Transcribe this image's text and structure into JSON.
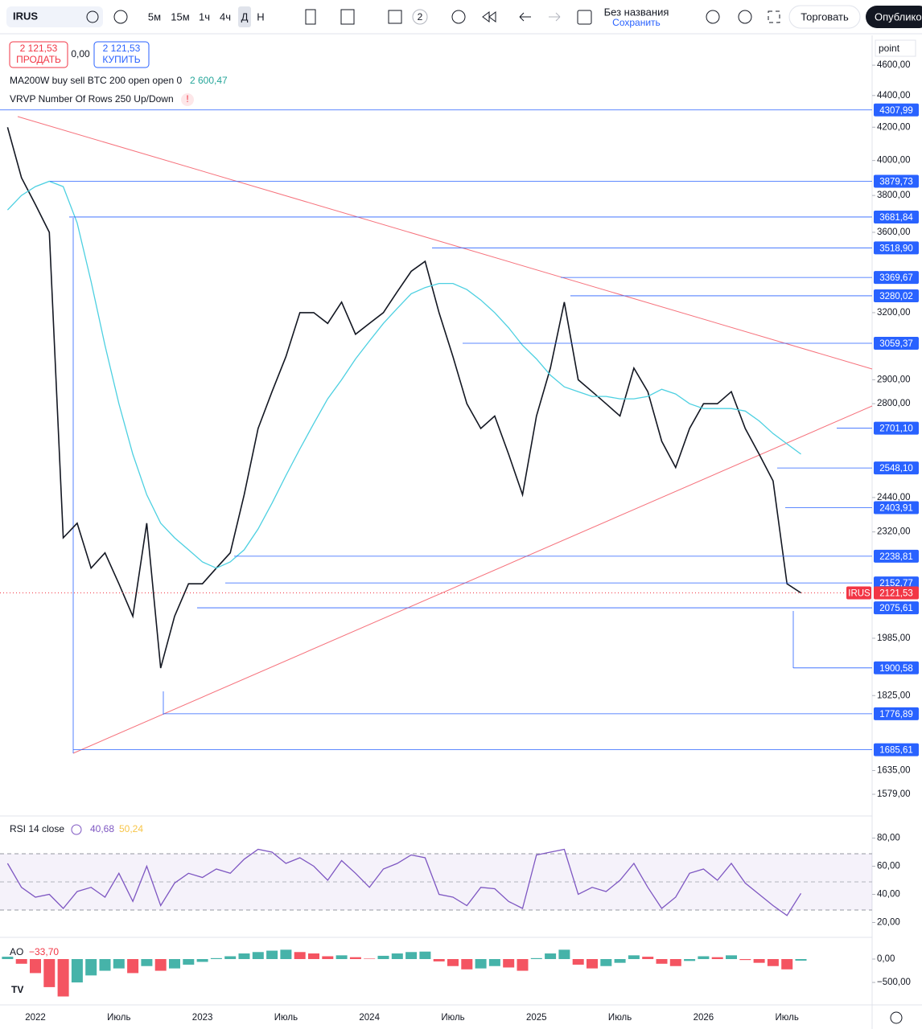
{
  "toolbar": {
    "symbol": "IRUS",
    "intervals": [
      "5м",
      "15м",
      "1ч",
      "4ч",
      "Д",
      "Н"
    ],
    "layout_count": "2",
    "layout_name": "Без названия",
    "save_hint": "Сохранить",
    "trade_button": "Торговать",
    "publish_button": "Опублико"
  },
  "order_panel": {
    "sell_price": "2 121,53",
    "sell_label": "ПРОДАТЬ",
    "spread": "0,00",
    "buy_price": "2 121,53",
    "buy_label": "КУПИТЬ"
  },
  "indicators": {
    "ma_value": "2 600,47",
    "vrvp_legend": "VRVP Number Of Rows 250 Up/Down",
    "rsi_value": "40,68",
    "rsi_ma_value": "50,24",
    "ao_value": "−33,70"
  },
  "price_scale_mode": "point",
  "chart_data": [
    {
      "type": "line",
      "log_scale": true,
      "ylim": [
        1535,
        4800
      ],
      "categories": [
        null,
        null,
        "2022",
        null,
        null,
        null,
        null,
        null,
        "Июль",
        null,
        null,
        null,
        null,
        null,
        "2023",
        null,
        null,
        null,
        null,
        null,
        "Июль",
        null,
        null,
        null,
        null,
        null,
        "2024",
        null,
        null,
        null,
        null,
        null,
        "Июль",
        null,
        null,
        null,
        null,
        null,
        "2025",
        null,
        null,
        null,
        null,
        null,
        "Июль",
        null,
        null,
        null,
        null,
        null,
        "2026",
        null,
        null,
        null,
        null,
        null,
        "Июль",
        null
      ],
      "series": [
        {
          "name": "IRUS",
          "color": "#131722",
          "values": [
            4200,
            3900,
            3750,
            3600,
            2300,
            2350,
            2200,
            2250,
            2150,
            2050,
            2350,
            1900,
            2050,
            2150,
            2150,
            2200,
            2250,
            2450,
            2700,
            2850,
            3000,
            3200,
            3200,
            3150,
            3250,
            3100,
            3150,
            3200,
            3300,
            3400,
            3450,
            3200,
            3000,
            2800,
            2700,
            2750,
            2600,
            2450,
            2750,
            2950,
            3250,
            2900,
            2850,
            2800,
            2750,
            2950,
            2850,
            2650,
            2550,
            2700,
            2800,
            2800,
            2850,
            2700,
            2600,
            2500,
            2150,
            2121.53
          ]
        },
        {
          "name": "MA200W buy sell BTC 200 open open 0",
          "color": "#4dd0e1",
          "values": [
            3720,
            3800,
            3850,
            3880,
            3850,
            3650,
            3350,
            3050,
            2800,
            2600,
            2450,
            2350,
            2300,
            2260,
            2220,
            2200,
            2220,
            2260,
            2330,
            2420,
            2520,
            2620,
            2720,
            2820,
            2900,
            2990,
            3070,
            3150,
            3220,
            3290,
            3320,
            3340,
            3340,
            3310,
            3260,
            3200,
            3130,
            3050,
            2990,
            2920,
            2870,
            2850,
            2830,
            2830,
            2820,
            2820,
            2830,
            2860,
            2840,
            2800,
            2780,
            2780,
            2780,
            2770,
            2730,
            2680,
            2640,
            2600.47
          ]
        }
      ],
      "yticks": [
        {
          "value": 4600,
          "label": "4600,00"
        },
        {
          "value": 4400,
          "label": "4400,00"
        },
        {
          "value": 4200,
          "label": "4200,00"
        },
        {
          "value": 4000,
          "label": "4000,00"
        },
        {
          "value": 3800,
          "label": "3800,00"
        },
        {
          "value": 3600,
          "label": "3600,00"
        },
        {
          "value": 3200,
          "label": "3200,00"
        },
        {
          "value": 2900,
          "label": "2900,00"
        },
        {
          "value": 2800,
          "label": "2800,00"
        },
        {
          "value": 2440,
          "label": "2440,00"
        },
        {
          "value": 2320,
          "label": "2320,00"
        },
        {
          "value": 1985,
          "label": "1985,00"
        },
        {
          "value": 1825,
          "label": "1825,00"
        },
        {
          "value": 1635,
          "label": "1635,00"
        },
        {
          "value": 1579,
          "label": "1579,00"
        }
      ],
      "price_levels": [
        {
          "value": 4307.99,
          "label": "4307,99"
        },
        {
          "value": 3879.73,
          "label": "3879,73"
        },
        {
          "value": 3681.84,
          "label": "3681,84"
        },
        {
          "value": 3518.9,
          "label": "3518,90"
        },
        {
          "value": 3369.67,
          "label": "3369,67"
        },
        {
          "value": 3280.02,
          "label": "3280,02"
        },
        {
          "value": 3059.37,
          "label": "3059,37"
        },
        {
          "value": 2701.1,
          "label": "2701,10"
        },
        {
          "value": 2548.1,
          "label": "2548,10"
        },
        {
          "value": 2403.91,
          "label": "2403,91"
        },
        {
          "value": 2238.81,
          "label": "2238,81"
        },
        {
          "value": 2152.77,
          "label": "2152,77"
        },
        {
          "value": 2075.61,
          "label": "2075,61"
        },
        {
          "value": 1900.58,
          "label": "1900,58"
        },
        {
          "value": 1776.89,
          "label": "1776,89"
        },
        {
          "value": 1685.61,
          "label": "1685,61"
        }
      ],
      "last_price": {
        "value": 2121.53,
        "label": "2121,53"
      }
    },
    {
      "type": "line",
      "ylim": [
        10,
        94
      ],
      "series": [
        {
          "name": "RSI 14 close",
          "color": "#7e57c2",
          "values": [
            62,
            45,
            38,
            40,
            30,
            42,
            45,
            38,
            55,
            35,
            60,
            32,
            48,
            55,
            52,
            58,
            55,
            65,
            72,
            70,
            62,
            66,
            60,
            50,
            64,
            55,
            45,
            58,
            62,
            68,
            66,
            40,
            38,
            32,
            45,
            44,
            35,
            30,
            68,
            70,
            72,
            40,
            45,
            42,
            50,
            62,
            45,
            30,
            38,
            55,
            58,
            50,
            62,
            48,
            40,
            32,
            25,
            40.68
          ]
        }
      ],
      "yticks": [
        {
          "value": 80,
          "label": "80,00"
        },
        {
          "value": 60,
          "label": "60,00"
        },
        {
          "value": 40,
          "label": "40,00"
        },
        {
          "value": 20,
          "label": "20,00"
        }
      ]
    },
    {
      "type": "bar",
      "ylim": [
        -980,
        430
      ],
      "series": [
        {
          "name": "AO",
          "values": [
            50,
            -100,
            -300,
            -600,
            -800,
            -500,
            -350,
            -250,
            -200,
            -300,
            -150,
            -250,
            -200,
            -120,
            -60,
            20,
            60,
            120,
            150,
            180,
            200,
            150,
            120,
            60,
            80,
            40,
            10,
            70,
            120,
            150,
            160,
            -50,
            -150,
            -220,
            -200,
            -150,
            -180,
            -250,
            20,
            120,
            200,
            -120,
            -200,
            -150,
            -80,
            80,
            50,
            -100,
            -150,
            -40,
            60,
            40,
            80,
            -20,
            -80,
            -150,
            -220,
            -33.7
          ]
        }
      ],
      "yticks": [
        {
          "value": 0,
          "label": "0,00"
        },
        {
          "value": -500,
          "label": "−500,00"
        }
      ]
    }
  ]
}
